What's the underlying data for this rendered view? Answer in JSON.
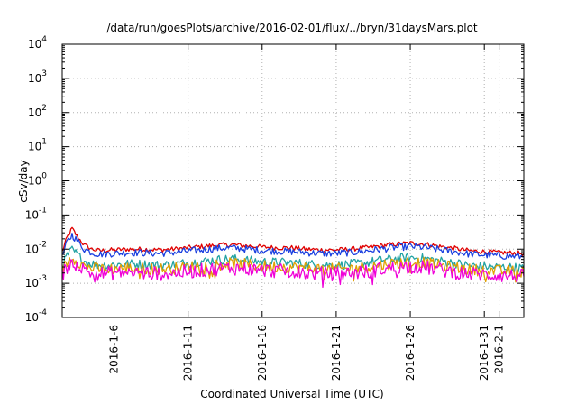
{
  "chart_data": {
    "type": "line",
    "title": "/data/run/goesPlots/archive/2016-02-01/flux/../bryn/31daysMars.plot",
    "xlabel": "Coordinated Universal Time (UTC)",
    "ylabel": "cSv/day",
    "y_scale": "log",
    "ylim": [
      0.0001,
      10000
    ],
    "xlim": [
      "2016-01-02T12:00",
      "2016-02-02T16:00"
    ],
    "grid": true,
    "y_ticks": [
      {
        "value": 0.0001,
        "base": "10",
        "exp": "-4"
      },
      {
        "value": 0.001,
        "base": "10",
        "exp": "-3"
      },
      {
        "value": 0.01,
        "base": "10",
        "exp": "-2"
      },
      {
        "value": 0.1,
        "base": "10",
        "exp": "-1"
      },
      {
        "value": 1,
        "base": "10",
        "exp": "0"
      },
      {
        "value": 10,
        "base": "10",
        "exp": "1"
      },
      {
        "value": 100,
        "base": "10",
        "exp": "2"
      },
      {
        "value": 1000,
        "base": "10",
        "exp": "3"
      },
      {
        "value": 10000,
        "base": "10",
        "exp": "4"
      }
    ],
    "x_ticks": [
      {
        "label": "2016-1-6",
        "date": "2016-01-06"
      },
      {
        "label": "2016-1-11",
        "date": "2016-01-11"
      },
      {
        "label": "2016-1-16",
        "date": "2016-01-16"
      },
      {
        "label": "2016-1-21",
        "date": "2016-01-21"
      },
      {
        "label": "2016-1-26",
        "date": "2016-01-26"
      },
      {
        "label": "2016-1-31",
        "date": "2016-01-31"
      },
      {
        "label": "2016-2-1",
        "date": "2016-02-01"
      }
    ],
    "series": [
      {
        "color": "#e00000",
        "points": [
          [
            "2016-01-02T12:00",
            0.0085
          ],
          [
            "2016-01-02T20:00",
            0.022
          ],
          [
            "2016-01-03T04:00",
            0.04
          ],
          [
            "2016-01-03T12:00",
            0.024
          ],
          [
            "2016-01-04T00:00",
            0.013
          ],
          [
            "2016-01-04T12:00",
            0.01
          ],
          [
            "2016-01-05T00:00",
            0.009
          ],
          [
            "2016-01-06T00:00",
            0.0095
          ],
          [
            "2016-01-07T00:00",
            0.01
          ],
          [
            "2016-01-08T00:00",
            0.01
          ],
          [
            "2016-01-09T00:00",
            0.0095
          ],
          [
            "2016-01-10T00:00",
            0.01
          ],
          [
            "2016-01-11T00:00",
            0.011
          ],
          [
            "2016-01-12T00:00",
            0.012
          ],
          [
            "2016-01-13T00:00",
            0.013
          ],
          [
            "2016-01-14T00:00",
            0.0135
          ],
          [
            "2016-01-15T00:00",
            0.0125
          ],
          [
            "2016-01-16T00:00",
            0.0115
          ],
          [
            "2016-01-17T00:00",
            0.011
          ],
          [
            "2016-01-18T00:00",
            0.011
          ],
          [
            "2016-01-19T00:00",
            0.01
          ],
          [
            "2016-01-20T00:00",
            0.0095
          ],
          [
            "2016-01-21T00:00",
            0.0095
          ],
          [
            "2016-01-22T00:00",
            0.01
          ],
          [
            "2016-01-23T00:00",
            0.011
          ],
          [
            "2016-01-24T00:00",
            0.0125
          ],
          [
            "2016-01-25T00:00",
            0.014
          ],
          [
            "2016-01-26T00:00",
            0.015
          ],
          [
            "2016-01-27T00:00",
            0.014
          ],
          [
            "2016-01-28T00:00",
            0.012
          ],
          [
            "2016-01-29T00:00",
            0.0105
          ],
          [
            "2016-01-30T00:00",
            0.009
          ],
          [
            "2016-01-31T00:00",
            0.0085
          ],
          [
            "2016-02-01T00:00",
            0.008
          ],
          [
            "2016-02-02T16:00",
            0.0075
          ]
        ]
      },
      {
        "color": "#1a3fe0",
        "points": [
          [
            "2016-01-02T12:00",
            0.006
          ],
          [
            "2016-01-02T20:00",
            0.016
          ],
          [
            "2016-01-03T04:00",
            0.026
          ],
          [
            "2016-01-03T12:00",
            0.018
          ],
          [
            "2016-01-04T00:00",
            0.01
          ],
          [
            "2016-01-04T12:00",
            0.008
          ],
          [
            "2016-01-05T00:00",
            0.0072
          ],
          [
            "2016-01-06T00:00",
            0.0075
          ],
          [
            "2016-01-07T00:00",
            0.008
          ],
          [
            "2016-01-08T00:00",
            0.0078
          ],
          [
            "2016-01-09T00:00",
            0.0075
          ],
          [
            "2016-01-10T00:00",
            0.008
          ],
          [
            "2016-01-11T00:00",
            0.0088
          ],
          [
            "2016-01-12T00:00",
            0.0095
          ],
          [
            "2016-01-13T00:00",
            0.0105
          ],
          [
            "2016-01-14T00:00",
            0.011
          ],
          [
            "2016-01-15T00:00",
            0.01
          ],
          [
            "2016-01-16T00:00",
            0.0092
          ],
          [
            "2016-01-17T00:00",
            0.0088
          ],
          [
            "2016-01-18T00:00",
            0.0085
          ],
          [
            "2016-01-19T00:00",
            0.008
          ],
          [
            "2016-01-20T00:00",
            0.0075
          ],
          [
            "2016-01-21T00:00",
            0.0075
          ],
          [
            "2016-01-22T00:00",
            0.008
          ],
          [
            "2016-01-23T00:00",
            0.0088
          ],
          [
            "2016-01-24T00:00",
            0.01
          ],
          [
            "2016-01-25T00:00",
            0.0112
          ],
          [
            "2016-01-26T00:00",
            0.012
          ],
          [
            "2016-01-27T00:00",
            0.0112
          ],
          [
            "2016-01-28T00:00",
            0.0096
          ],
          [
            "2016-01-29T00:00",
            0.0084
          ],
          [
            "2016-01-30T00:00",
            0.0072
          ],
          [
            "2016-01-31T00:00",
            0.0068
          ],
          [
            "2016-02-01T00:00",
            0.0064
          ],
          [
            "2016-02-02T16:00",
            0.006
          ]
        ]
      },
      {
        "color": "#22a3a3",
        "points": [
          [
            "2016-01-02T12:00",
            0.0032
          ],
          [
            "2016-01-02T20:00",
            0.0065
          ],
          [
            "2016-01-03T04:00",
            0.0095
          ],
          [
            "2016-01-03T12:00",
            0.007
          ],
          [
            "2016-01-04T00:00",
            0.0045
          ],
          [
            "2016-01-04T12:00",
            0.0038
          ],
          [
            "2016-01-05T00:00",
            0.0034
          ],
          [
            "2016-01-06T00:00",
            0.0035
          ],
          [
            "2016-01-07T00:00",
            0.0037
          ],
          [
            "2016-01-08T00:00",
            0.0036
          ],
          [
            "2016-01-09T00:00",
            0.0034
          ],
          [
            "2016-01-10T00:00",
            0.0036
          ],
          [
            "2016-01-11T00:00",
            0.004
          ],
          [
            "2016-01-12T00:00",
            0.0044
          ],
          [
            "2016-01-13T00:00",
            0.0049
          ],
          [
            "2016-01-14T00:00",
            0.0052
          ],
          [
            "2016-01-15T00:00",
            0.0047
          ],
          [
            "2016-01-16T00:00",
            0.0043
          ],
          [
            "2016-01-17T00:00",
            0.0041
          ],
          [
            "2016-01-18T00:00",
            0.004
          ],
          [
            "2016-01-19T00:00",
            0.0037
          ],
          [
            "2016-01-20T00:00",
            0.0034
          ],
          [
            "2016-01-21T00:00",
            0.0034
          ],
          [
            "2016-01-22T00:00",
            0.0036
          ],
          [
            "2016-01-23T00:00",
            0.004
          ],
          [
            "2016-01-24T00:00",
            0.0047
          ],
          [
            "2016-01-25T00:00",
            0.0053
          ],
          [
            "2016-01-26T00:00",
            0.0057
          ],
          [
            "2016-01-27T00:00",
            0.0053
          ],
          [
            "2016-01-28T00:00",
            0.0045
          ],
          [
            "2016-01-29T00:00",
            0.0039
          ],
          [
            "2016-01-30T00:00",
            0.0033
          ],
          [
            "2016-01-31T00:00",
            0.0031
          ],
          [
            "2016-02-01T00:00",
            0.003
          ],
          [
            "2016-02-02T16:00",
            0.0028
          ]
        ]
      },
      {
        "color": "#e0a000",
        "points": [
          [
            "2016-01-02T12:00",
            0.0025
          ],
          [
            "2016-01-02T20:00",
            0.004
          ],
          [
            "2016-01-03T04:00",
            0.006
          ],
          [
            "2016-01-03T12:00",
            0.0045
          ],
          [
            "2016-01-04T00:00",
            0.0032
          ],
          [
            "2016-01-04T12:00",
            0.0028
          ],
          [
            "2016-01-05T00:00",
            0.0026
          ],
          [
            "2016-01-06T00:00",
            0.0027
          ],
          [
            "2016-01-07T00:00",
            0.0028
          ],
          [
            "2016-01-08T00:00",
            0.0027
          ],
          [
            "2016-01-09T00:00",
            0.0026
          ],
          [
            "2016-01-10T00:00",
            0.0027
          ],
          [
            "2016-01-11T00:00",
            0.003
          ],
          [
            "2016-01-12T00:00",
            0.0033
          ],
          [
            "2016-01-13T00:00",
            0.0036
          ],
          [
            "2016-01-14T00:00",
            0.0038
          ],
          [
            "2016-01-15T00:00",
            0.0035
          ],
          [
            "2016-01-16T00:00",
            0.0032
          ],
          [
            "2016-01-17T00:00",
            0.0031
          ],
          [
            "2016-01-18T00:00",
            0.003
          ],
          [
            "2016-01-19T00:00",
            0.0028
          ],
          [
            "2016-01-20T00:00",
            0.0026
          ],
          [
            "2016-01-21T00:00",
            0.0026
          ],
          [
            "2016-01-22T00:00",
            0.0027
          ],
          [
            "2016-01-23T00:00",
            0.003
          ],
          [
            "2016-01-24T00:00",
            0.0035
          ],
          [
            "2016-01-25T00:00",
            0.0039
          ],
          [
            "2016-01-26T00:00",
            0.0042
          ],
          [
            "2016-01-27T00:00",
            0.0039
          ],
          [
            "2016-01-28T00:00",
            0.0033
          ],
          [
            "2016-01-29T00:00",
            0.0029
          ],
          [
            "2016-01-30T00:00",
            0.0025
          ],
          [
            "2016-01-31T00:00",
            0.0024
          ],
          [
            "2016-02-01T00:00",
            0.0023
          ],
          [
            "2016-02-02T16:00",
            0.0022
          ]
        ]
      },
      {
        "color": "#f000d8",
        "points": [
          [
            "2016-01-02T12:00",
            0.0018
          ],
          [
            "2016-01-02T20:00",
            0.003
          ],
          [
            "2016-01-03T04:00",
            0.0045
          ],
          [
            "2016-01-03T12:00",
            0.0034
          ],
          [
            "2016-01-04T00:00",
            0.0024
          ],
          [
            "2016-01-04T12:00",
            0.002
          ],
          [
            "2016-01-05T00:00",
            0.0019
          ],
          [
            "2016-01-06T00:00",
            0.002
          ],
          [
            "2016-01-07T00:00",
            0.0021
          ],
          [
            "2016-01-08T00:00",
            0.002
          ],
          [
            "2016-01-09T00:00",
            0.0019
          ],
          [
            "2016-01-10T00:00",
            0.002
          ],
          [
            "2016-01-11T00:00",
            0.0022
          ],
          [
            "2016-01-12T00:00",
            0.0024
          ],
          [
            "2016-01-13T00:00",
            0.0027
          ],
          [
            "2016-01-14T00:00",
            0.0028
          ],
          [
            "2016-01-15T00:00",
            0.0026
          ],
          [
            "2016-01-16T00:00",
            0.0024
          ],
          [
            "2016-01-17T00:00",
            0.0023
          ],
          [
            "2016-01-18T00:00",
            0.0022
          ],
          [
            "2016-01-19T00:00",
            0.002
          ],
          [
            "2016-01-20T00:00",
            0.0019
          ],
          [
            "2016-01-21T00:00",
            0.0019
          ],
          [
            "2016-01-22T00:00",
            0.002
          ],
          [
            "2016-01-23T00:00",
            0.0022
          ],
          [
            "2016-01-24T00:00",
            0.0026
          ],
          [
            "2016-01-25T00:00",
            0.0029
          ],
          [
            "2016-01-26T00:00",
            0.0031
          ],
          [
            "2016-01-27T00:00",
            0.0029
          ],
          [
            "2016-01-28T00:00",
            0.0025
          ],
          [
            "2016-01-29T00:00",
            0.0021
          ],
          [
            "2016-01-30T00:00",
            0.0019
          ],
          [
            "2016-01-31T00:00",
            0.0018
          ],
          [
            "2016-02-01T00:00",
            0.0017
          ],
          [
            "2016-02-02T16:00",
            0.0016
          ]
        ]
      }
    ]
  }
}
